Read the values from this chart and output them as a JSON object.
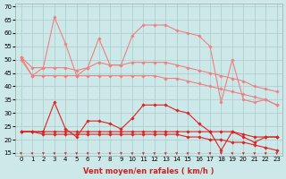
{
  "xlabel": "Vent moyen/en rafales ( km/h )",
  "background_color": "#cce8e8",
  "grid_color": "#aacccc",
  "x": [
    0,
    1,
    2,
    3,
    4,
    5,
    6,
    7,
    8,
    9,
    10,
    11,
    12,
    13,
    14,
    15,
    16,
    17,
    18,
    19,
    20,
    21,
    22,
    23
  ],
  "series": [
    {
      "color": "#f08080",
      "lw": 0.8,
      "marker": "D",
      "ms": 1.8,
      "y": [
        51,
        44,
        47,
        66,
        56,
        44,
        47,
        58,
        48,
        48,
        59,
        63,
        63,
        63,
        61,
        60,
        59,
        55,
        34,
        50,
        35,
        34,
        35,
        33
      ]
    },
    {
      "color": "#f08080",
      "lw": 0.8,
      "marker": "D",
      "ms": 1.8,
      "y": [
        51,
        47,
        47,
        47,
        47,
        46,
        47,
        49,
        48,
        48,
        49,
        49,
        49,
        49,
        48,
        47,
        46,
        45,
        44,
        43,
        42,
        40,
        39,
        38
      ]
    },
    {
      "color": "#f08080",
      "lw": 0.8,
      "marker": "D",
      "ms": 1.8,
      "y": [
        50,
        44,
        44,
        44,
        44,
        44,
        44,
        44,
        44,
        44,
        44,
        44,
        44,
        43,
        43,
        42,
        41,
        40,
        39,
        38,
        37,
        36,
        35,
        33
      ]
    },
    {
      "color": "#dd2222",
      "lw": 0.8,
      "marker": "D",
      "ms": 1.8,
      "y": [
        23,
        23,
        23,
        34,
        24,
        21,
        27,
        27,
        26,
        24,
        28,
        33,
        33,
        33,
        31,
        30,
        26,
        23,
        16,
        23,
        21,
        19,
        21,
        21
      ]
    },
    {
      "color": "#dd2222",
      "lw": 0.8,
      "marker": "D",
      "ms": 1.8,
      "y": [
        23,
        23,
        23,
        23,
        23,
        23,
        23,
        23,
        23,
        23,
        23,
        23,
        23,
        23,
        23,
        23,
        23,
        23,
        23,
        23,
        22,
        21,
        21,
        21
      ]
    },
    {
      "color": "#dd2222",
      "lw": 0.8,
      "marker": "D",
      "ms": 1.8,
      "y": [
        23,
        23,
        22,
        22,
        22,
        22,
        22,
        22,
        22,
        22,
        22,
        22,
        22,
        22,
        22,
        21,
        21,
        20,
        20,
        19,
        19,
        18,
        17,
        16
      ]
    }
  ],
  "ylim": [
    14,
    71
  ],
  "yticks": [
    15,
    20,
    25,
    30,
    35,
    40,
    45,
    50,
    55,
    60,
    65,
    70
  ],
  "xlim": [
    -0.5,
    23.5
  ],
  "xticks": [
    0,
    1,
    2,
    3,
    4,
    5,
    6,
    7,
    8,
    9,
    10,
    11,
    12,
    13,
    14,
    15,
    16,
    17,
    18,
    19,
    20,
    21,
    22,
    23
  ],
  "tick_fontsize": 5.0,
  "label_fontsize": 6.0,
  "arrow_color": "#cc2222"
}
